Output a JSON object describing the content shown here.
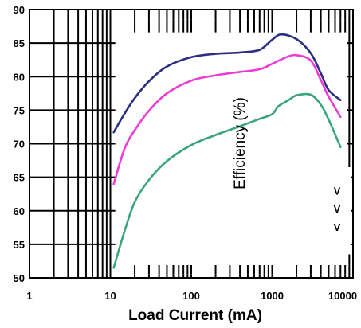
{
  "chart_data": {
    "type": "line",
    "xlabel": "Load Current (mA)",
    "ylabel": "Efficiency (%)",
    "x_scale": "log",
    "xlim": [
      1,
      10000
    ],
    "ylim": [
      50,
      90
    ],
    "x_ticks": [
      "1",
      "10",
      "100",
      "1000",
      "10000"
    ],
    "y_ticks": [
      "50",
      "55",
      "60",
      "65",
      "70",
      "75",
      "80",
      "85",
      "90"
    ],
    "grid": true,
    "legend_labels": [
      "V",
      "V",
      "V"
    ],
    "series": [
      {
        "color": "#2b2f80",
        "x": [
          11,
          15,
          20,
          30,
          50,
          100,
          200,
          400,
          700,
          1000,
          1300,
          2000,
          3000,
          4000,
          5000,
          7000
        ],
        "y": [
          71.7,
          74.5,
          76.8,
          79.3,
          81.5,
          82.9,
          83.4,
          83.6,
          84.0,
          85.5,
          86.3,
          85.6,
          83.5,
          80.5,
          78.0,
          76.5
        ]
      },
      {
        "color": "#ec3bd6",
        "x": [
          11,
          15,
          20,
          30,
          50,
          100,
          200,
          400,
          700,
          1000,
          1500,
          2000,
          3000,
          4000,
          5000,
          7000
        ],
        "y": [
          64.0,
          69.3,
          72.0,
          74.9,
          77.5,
          79.4,
          80.2,
          80.7,
          81.1,
          81.9,
          82.9,
          83.2,
          82.4,
          79.5,
          77.0,
          74.0
        ]
      },
      {
        "color": "#3aa57a",
        "x": [
          11,
          15,
          20,
          30,
          50,
          100,
          200,
          400,
          700,
          1000,
          1200,
          1600,
          2000,
          3000,
          4000,
          5000,
          7000
        ],
        "y": [
          51.5,
          57.0,
          61.3,
          64.6,
          67.4,
          69.8,
          71.3,
          72.6,
          73.7,
          74.4,
          75.6,
          76.5,
          77.2,
          77.3,
          75.8,
          73.6,
          69.5
        ]
      }
    ]
  }
}
